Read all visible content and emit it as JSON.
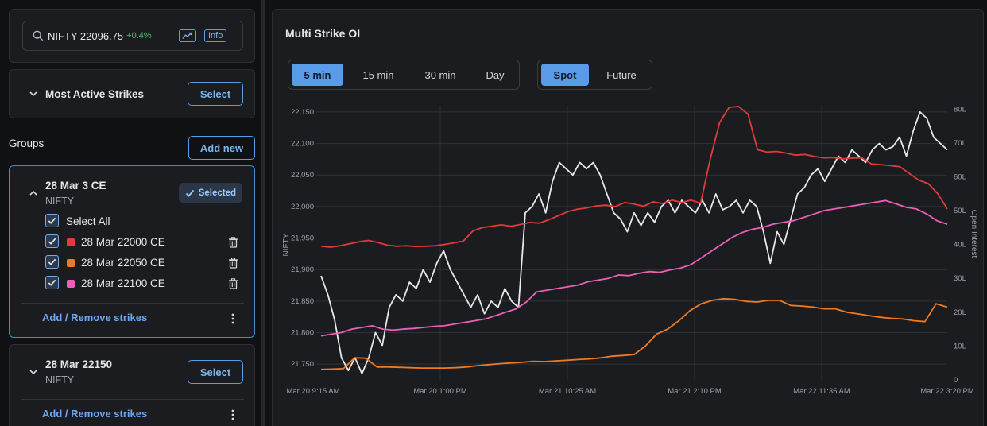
{
  "search": {
    "symbol": "NIFTY 22096.75",
    "change": "+0.4%",
    "info_label": "Info"
  },
  "most_active": {
    "title": "Most Active Strikes",
    "select_label": "Select"
  },
  "groups": {
    "label": "Groups",
    "add_new_label": "Add new",
    "items": [
      {
        "title": "28 Mar 3 CE",
        "subtitle": "NIFTY",
        "badge": "Selected",
        "select_all": "Select All",
        "strikes": [
          {
            "label": "28 Mar 22000 CE",
            "color": "#e23a3a"
          },
          {
            "label": "28 Mar 22050 CE",
            "color": "#f07a22"
          },
          {
            "label": "28 Mar 22100 CE",
            "color": "#ec5fb6"
          }
        ],
        "link": "Add / Remove strikes"
      },
      {
        "title": "28 Mar 22150",
        "subtitle": "NIFTY",
        "select_label": "Select",
        "link": "Add / Remove strikes"
      }
    ]
  },
  "panel": {
    "title": "Multi Strike OI",
    "intervals": [
      "5 min",
      "15 min",
      "30 min",
      "Day"
    ],
    "active_interval": "5 min",
    "price_types": [
      "Spot",
      "Future"
    ],
    "active_price_type": "Spot"
  },
  "colors": {
    "accent": "#5a9be8",
    "positive": "#46c26a"
  },
  "chart_data": {
    "type": "line",
    "ylabel": "NIFTY",
    "y2label": "Open Interest",
    "ylim": [
      21725,
      22160
    ],
    "y2lim": [
      0,
      81
    ],
    "y_ticks": [
      "22,150",
      "22,100",
      "22,050",
      "22,000",
      "21,950",
      "21,900",
      "21,850",
      "21,800",
      "21,750"
    ],
    "y2_ticks": [
      "80L",
      "70L",
      "60L",
      "50L",
      "40L",
      "30L",
      "20L",
      "10L",
      "0"
    ],
    "x_ticks": [
      "Mar 20 9:15 AM",
      "Mar 20 1:00 PM",
      "Mar 21 10:25 AM",
      "Mar 21 2:10 PM",
      "Mar 22 11:35 AM",
      "Mar 22 3:20 PM"
    ],
    "series": [
      {
        "name": "NIFTY",
        "axis": "left",
        "color": "#e8e8e8",
        "values": [
          21890,
          21860,
          21820,
          21760,
          21740,
          21760,
          21735,
          21760,
          21800,
          21780,
          21840,
          21860,
          21850,
          21880,
          21870,
          21900,
          21880,
          21910,
          21930,
          21900,
          21880,
          21860,
          21840,
          21860,
          21830,
          21850,
          21840,
          21870,
          21850,
          21840,
          21990,
          22000,
          22020,
          21990,
          22040,
          22070,
          22060,
          22050,
          22070,
          22060,
          22070,
          22050,
          22020,
          21990,
          21980,
          21960,
          21990,
          21970,
          21990,
          21975,
          22000,
          22010,
          21990,
          22010,
          22000,
          21990,
          22010,
          21990,
          22020,
          21995,
          22000,
          22010,
          21990,
          22010,
          22000,
          21960,
          21910,
          21960,
          21940,
          21980,
          22020,
          22030,
          22050,
          22060,
          22040,
          22060,
          22080,
          22070,
          22090,
          22080,
          22070,
          22090,
          22100,
          22090,
          22095,
          22110,
          22080,
          22120,
          22150,
          22140,
          22110,
          22100,
          22090
        ]
      },
      {
        "name": "28 Mar 22000 CE",
        "axis": "right",
        "color": "#e23a3a",
        "values": [
          39.5,
          39.2,
          39.6,
          40.2,
          40.8,
          41.2,
          40.6,
          39.8,
          39.5,
          39.6,
          39.4,
          39.5,
          39.6,
          40.0,
          40.5,
          41.0,
          44.0,
          45.0,
          45.4,
          45.8,
          45.4,
          45.9,
          46.5,
          46.3,
          47.3,
          48.5,
          49.7,
          50.4,
          50.8,
          51.4,
          51.6,
          51.2,
          52.4,
          51.9,
          51.3,
          52.6,
          52.1,
          53.1,
          52.4,
          53.1,
          52.2,
          65.0,
          76.0,
          80.5,
          80.8,
          78.5,
          68.0,
          67.3,
          67.5,
          67.0,
          66.4,
          66.6,
          66.0,
          65.6,
          65.7,
          65.3,
          65.5,
          65.6,
          63.8,
          63.6,
          63.3,
          63.0,
          61.0,
          59.0,
          58.0,
          55.0,
          50.5
        ]
      },
      {
        "name": "28 Mar 22050 CE",
        "axis": "right",
        "color": "#f07a22",
        "values": [
          3.1,
          3.2,
          3.3,
          6.5,
          6.4,
          3.8,
          3.8,
          3.7,
          3.6,
          3.5,
          3.5,
          3.5,
          3.6,
          3.8,
          4.2,
          4.5,
          4.8,
          5.0,
          5.2,
          5.5,
          5.4,
          5.6,
          5.8,
          6.0,
          6.2,
          6.5,
          7.0,
          7.2,
          7.5,
          10.0,
          13.5,
          15.0,
          17.5,
          20.5,
          22.5,
          23.5,
          24.0,
          23.8,
          23.2,
          23.0,
          23.5,
          23.5,
          22.0,
          21.8,
          21.5,
          21.0,
          21.0,
          20.0,
          19.5,
          19.0,
          18.5,
          18.2,
          18.0,
          17.5,
          17.2,
          22.5,
          21.5
        ]
      },
      {
        "name": "28 Mar 22100 CE",
        "axis": "right",
        "color": "#ec5fb6",
        "values": [
          13.0,
          13.5,
          14.0,
          15.0,
          15.5,
          16.0,
          15.0,
          14.7,
          15.0,
          15.2,
          15.5,
          15.8,
          16.0,
          16.5,
          17.0,
          17.5,
          18.0,
          19.0,
          20.0,
          21.0,
          23.0,
          26.0,
          26.5,
          27.0,
          27.5,
          28.0,
          29.0,
          29.5,
          30.0,
          31.0,
          30.8,
          31.5,
          32.0,
          31.8,
          32.5,
          33.0,
          34.0,
          36.0,
          38.0,
          40.0,
          42.0,
          43.5,
          44.5,
          45.0,
          46.0,
          46.5,
          47.0,
          48.0,
          49.0,
          50.0,
          50.5,
          51.0,
          51.5,
          52.0,
          52.5,
          53.0,
          52.0,
          51.0,
          50.5,
          49.0,
          47.0,
          46.0
        ]
      }
    ]
  }
}
